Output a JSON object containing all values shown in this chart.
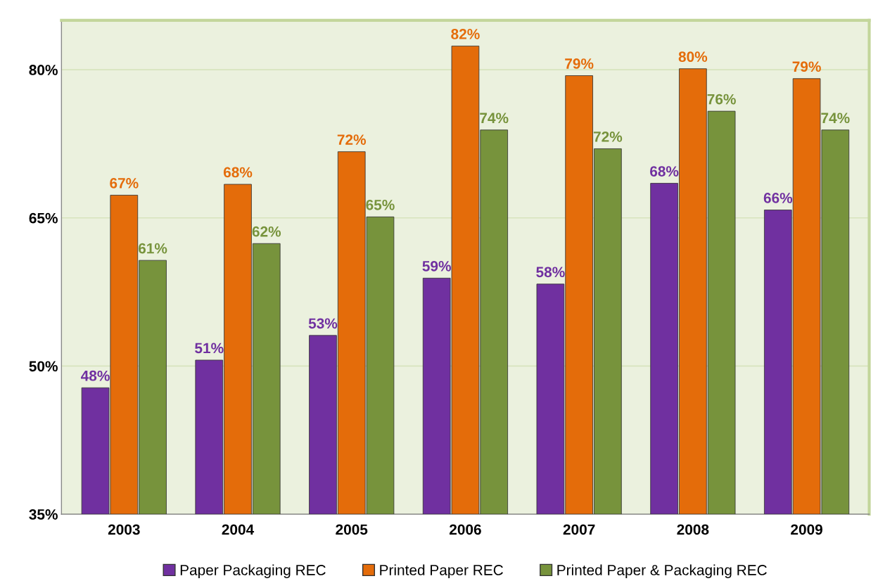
{
  "chart_data": {
    "type": "bar",
    "categories": [
      "2003",
      "2004",
      "2005",
      "2006",
      "2007",
      "2008",
      "2009"
    ],
    "series": [
      {
        "name": "Paper Packaging REC",
        "color": "#7030a0",
        "values": [
          47.8,
          50.6,
          53.1,
          58.9,
          58.3,
          68.5,
          65.8
        ],
        "value_labels": [
          "48%",
          "51%",
          "53%",
          "59%",
          "58%",
          "68%",
          "66%"
        ]
      },
      {
        "name": "Printed Paper REC",
        "color": "#e46c0a",
        "values": [
          67.3,
          68.4,
          71.7,
          82.4,
          79.4,
          80.1,
          79.1
        ],
        "value_labels": [
          "67%",
          "68%",
          "72%",
          "82%",
          "79%",
          "80%",
          "79%"
        ]
      },
      {
        "name": "Printed Paper & Packaging REC",
        "color": "#77933c",
        "values": [
          60.7,
          62.4,
          65.1,
          73.9,
          72.0,
          75.8,
          73.9
        ],
        "value_labels": [
          "61%",
          "62%",
          "65%",
          "74%",
          "72%",
          "76%",
          "74%"
        ]
      }
    ],
    "ylim": [
      35,
      85
    ],
    "yticks": [
      {
        "value": 35,
        "label": "35%"
      },
      {
        "value": 50,
        "label": "50%"
      },
      {
        "value": 65,
        "label": "65%"
      },
      {
        "value": 80,
        "label": "80%"
      }
    ],
    "grid": "y",
    "legend": "bottom"
  }
}
